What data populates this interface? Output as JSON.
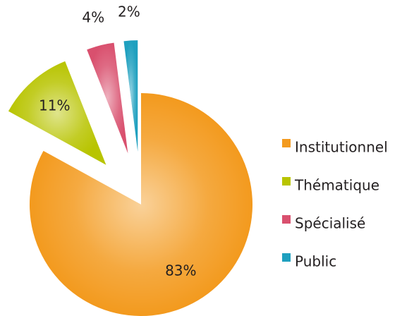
{
  "chart_data": {
    "type": "pie",
    "categories": [
      "Institutionnel",
      "Thématique",
      "Spécialisé",
      "Public"
    ],
    "values": [
      83,
      11,
      4,
      2
    ],
    "value_labels": [
      "83%",
      "11%",
      "4%",
      "2%"
    ],
    "colors": [
      "#f39a1e",
      "#b8c400",
      "#d9506e",
      "#1fa0bf"
    ],
    "legend": "right"
  }
}
